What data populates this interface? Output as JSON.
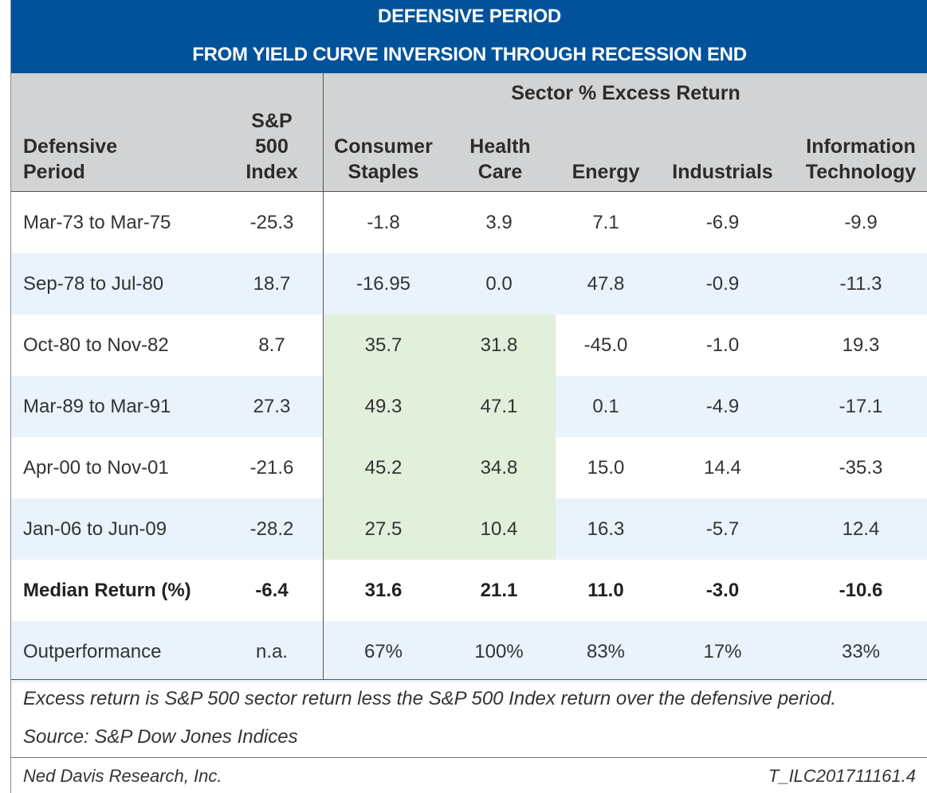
{
  "title": {
    "line1": "DEFENSIVE PERIOD",
    "line2": "FROM YIELD CURVE  INVERSION THROUGH RECESSION END"
  },
  "header": {
    "defensive_period": [
      "Defensive",
      "Period"
    ],
    "sp500": [
      "S&P",
      "500",
      "Index"
    ],
    "sector_group": "Sector % Excess Return",
    "consumer_staples": [
      "Consumer",
      "Staples"
    ],
    "health_care": [
      "Health",
      "Care"
    ],
    "energy": "Energy",
    "industrials": "Industrials",
    "information_technology": [
      "Information",
      "Technology"
    ]
  },
  "rows": [
    {
      "period": "Mar-73 to Mar-75",
      "sp500": "-25.3",
      "staples": "-1.8",
      "health": "3.9",
      "energy": "7.1",
      "industrials": "-6.9",
      "it": "-9.9"
    },
    {
      "period": "Sep-78 to Jul-80",
      "sp500": "18.7",
      "staples": "-16.95",
      "health": "0.0",
      "energy": "47.8",
      "industrials": "-0.9",
      "it": "-11.3"
    },
    {
      "period": "Oct-80 to Nov-82",
      "sp500": "8.7",
      "staples": "35.7",
      "health": "31.8",
      "energy": "-45.0",
      "industrials": "-1.0",
      "it": "19.3"
    },
    {
      "period": "Mar-89 to Mar-91",
      "sp500": "27.3",
      "staples": "49.3",
      "health": "47.1",
      "energy": "0.1",
      "industrials": "-4.9",
      "it": "-17.1"
    },
    {
      "period": "Apr-00 to Nov-01",
      "sp500": "-21.6",
      "staples": "45.2",
      "health": "34.8",
      "energy": "15.0",
      "industrials": "14.4",
      "it": "-35.3"
    },
    {
      "period": "Jan-06 to Jun-09",
      "sp500": "-28.2",
      "staples": "27.5",
      "health": "10.4",
      "energy": "16.3",
      "industrials": "-5.7",
      "it": "12.4"
    },
    {
      "period": "Median Return (%)",
      "sp500": "-6.4",
      "staples": "31.6",
      "health": "21.1",
      "energy": "11.0",
      "industrials": "-3.0",
      "it": "-10.6"
    },
    {
      "period": "Outperformance",
      "sp500": "n.a.",
      "staples": "67%",
      "health": "100%",
      "energy": "83%",
      "industrials": "17%",
      "it": "33%"
    }
  ],
  "notes": {
    "excess": "Excess return is S&P 500 sector return less the S&P 500 Index return over the defensive period.",
    "source": "Source: S&P Dow Jones Indices"
  },
  "footer": {
    "left": "Ned Davis Research, Inc.",
    "right": "T_ILC201711161.4"
  },
  "colors": {
    "title_bg": "#00539b",
    "header_bg": "#d1d3d4",
    "alt_row_bg": "#eaf3fb",
    "highlight_bg": "#e2efda"
  }
}
